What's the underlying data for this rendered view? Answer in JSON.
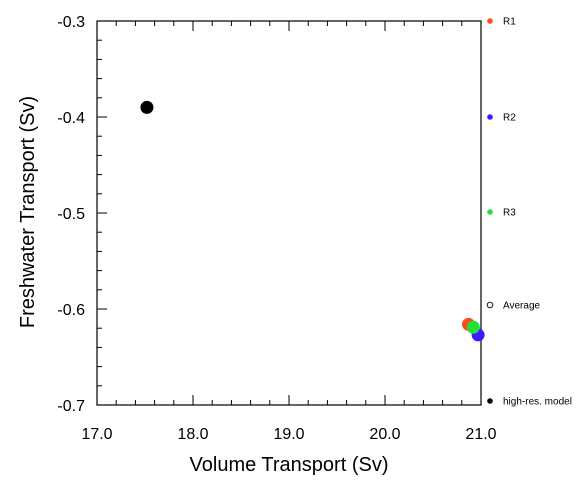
{
  "chart_data": {
    "type": "scatter",
    "xlabel": "Volume Transport (Sv)",
    "ylabel": "Freshwater Transport (Sv)",
    "xlim": [
      17.0,
      21.0
    ],
    "ylim": [
      -0.7,
      -0.3
    ],
    "x_ticks": [
      "17.0",
      "18.0",
      "19.0",
      "20.0",
      "21.0"
    ],
    "y_ticks": [
      "-0.3",
      "-0.4",
      "-0.5",
      "-0.6",
      "-0.7"
    ],
    "series": [
      {
        "name": "R1",
        "color": "#ff4a1a",
        "x": [
          20.87
        ],
        "y": [
          -0.616
        ]
      },
      {
        "name": "R2",
        "color": "#3a1aff",
        "x": [
          20.97
        ],
        "y": [
          -0.627
        ]
      },
      {
        "name": "R3",
        "color": "#22e03a",
        "x": [
          20.92
        ],
        "y": [
          -0.619
        ]
      },
      {
        "name": "Average",
        "color": "#000000",
        "hollow": true,
        "x": [],
        "y": []
      },
      {
        "name": "high-res. model",
        "color": "#000000",
        "x": [
          17.52
        ],
        "y": [
          -0.39
        ]
      }
    ],
    "grid": false,
    "legend_placement": "right"
  }
}
